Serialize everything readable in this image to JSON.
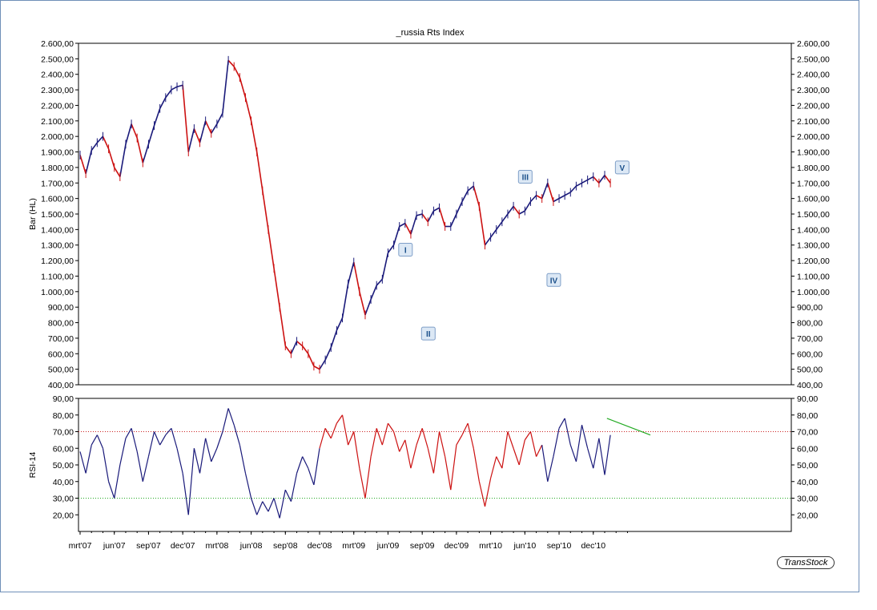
{
  "title": "_russia Rts Index",
  "brand": "TransStock",
  "colors": {
    "up": "#1a1a7a",
    "down": "#cc1111",
    "rsi_line_70": "#cc2222",
    "rsi_line_30": "#22aa22",
    "trendline": "#22aa22",
    "wave_label_bg": "#dce8f5",
    "wave_label_border": "#7f9fc8",
    "wave_label_text": "#1a4f8a"
  },
  "chart_data": [
    {
      "type": "line",
      "name": "price",
      "ylabel": "Bar (HL)",
      "ylim": [
        400,
        2600
      ],
      "yticks": [
        "400,00",
        "500,00",
        "600,00",
        "700,00",
        "800,00",
        "900,00",
        "1.000,00",
        "1.100,00",
        "1.200,00",
        "1.300,00",
        "1.400,00",
        "1.500,00",
        "1.600,00",
        "1.700,00",
        "1.800,00",
        "1.900,00",
        "2.000,00",
        "2.100,00",
        "2.200,00",
        "2.300,00",
        "2.400,00",
        "2.500,00",
        "2.600,00"
      ],
      "xticks": [
        "mrt'07",
        "jun'07",
        "sep'07",
        "dec'07",
        "mrt'08",
        "jun'08",
        "sep'08",
        "dec'08",
        "mrt'09",
        "jun'09",
        "sep'09",
        "dec'09",
        "mrt'10",
        "jun'10",
        "sep'10",
        "dec'10"
      ],
      "x_months": [
        0,
        0.5,
        1,
        1.5,
        2,
        2.5,
        3,
        3.5,
        4,
        4.5,
        5,
        5.5,
        6,
        6.5,
        7,
        7.5,
        8,
        8.5,
        9,
        9.5,
        10,
        10.5,
        11,
        11.5,
        12,
        12.5,
        13,
        13.5,
        14,
        14.5,
        15,
        15.5,
        16,
        16.5,
        17,
        17.5,
        18,
        18.5,
        19,
        19.5,
        20,
        20.5,
        21,
        21.5,
        22,
        22.5,
        23,
        23.5,
        24,
        24.5,
        25,
        25.5,
        26,
        26.5,
        27,
        27.5,
        28,
        28.5,
        29,
        29.5,
        30,
        30.5,
        31,
        31.5,
        32,
        32.5,
        33,
        33.5,
        34,
        34.5,
        35,
        35.5,
        36,
        36.5,
        37,
        37.5,
        38,
        38.5,
        39,
        39.5,
        40,
        40.5,
        41,
        41.5,
        42,
        42.5,
        43,
        43.5,
        44,
        44.5,
        45,
        45.5,
        46,
        46.5
      ],
      "values": [
        1880,
        1760,
        1910,
        1960,
        2000,
        1920,
        1800,
        1740,
        1950,
        2080,
        1990,
        1830,
        1950,
        2070,
        2180,
        2250,
        2300,
        2320,
        2330,
        1900,
        2050,
        1960,
        2100,
        2020,
        2080,
        2150,
        2490,
        2450,
        2380,
        2250,
        2100,
        1900,
        1650,
        1400,
        1150,
        900,
        650,
        600,
        680,
        650,
        600,
        520,
        500,
        560,
        640,
        750,
        830,
        1050,
        1190,
        1000,
        850,
        950,
        1040,
        1080,
        1250,
        1300,
        1420,
        1440,
        1370,
        1490,
        1500,
        1450,
        1520,
        1540,
        1420,
        1420,
        1500,
        1580,
        1650,
        1680,
        1550,
        1300,
        1350,
        1400,
        1450,
        1500,
        1550,
        1500,
        1520,
        1580,
        1620,
        1600,
        1700,
        1580,
        1600,
        1620,
        1640,
        1680,
        1700,
        1720,
        1740,
        1700,
        1750,
        1700
      ],
      "wave_labels": [
        {
          "label": "I",
          "month": 28.5,
          "price": 1270
        },
        {
          "label": "II",
          "month": 30.5,
          "price": 730
        },
        {
          "label": "III",
          "month": 39.0,
          "price": 1740
        },
        {
          "label": "IV",
          "month": 41.5,
          "price": 1075
        },
        {
          "label": "V",
          "month": 47.5,
          "price": 1800
        }
      ]
    },
    {
      "type": "line",
      "name": "rsi",
      "ylabel": "RSI-14",
      "ylim": [
        10,
        90
      ],
      "yticks": [
        "20,00",
        "30,00",
        "40,00",
        "50,00",
        "60,00",
        "70,00",
        "80,00",
        "90,00"
      ],
      "levels": [
        70,
        30
      ],
      "values": [
        58,
        45,
        62,
        68,
        60,
        40,
        30,
        50,
        66,
        72,
        58,
        40,
        55,
        70,
        62,
        68,
        72,
        60,
        45,
        20,
        60,
        45,
        66,
        52,
        60,
        70,
        84,
        74,
        62,
        45,
        30,
        20,
        28,
        22,
        30,
        18,
        35,
        28,
        45,
        55,
        48,
        38,
        60,
        72,
        66,
        75,
        80,
        62,
        70,
        48,
        30,
        55,
        72,
        62,
        75,
        70,
        58,
        65,
        48,
        62,
        72,
        60,
        45,
        70,
        55,
        35,
        62,
        68,
        75,
        60,
        40,
        25,
        42,
        55,
        48,
        70,
        60,
        50,
        65,
        70,
        55,
        62,
        40,
        55,
        72,
        78,
        62,
        52,
        74,
        60,
        48,
        66,
        44,
        68
      ],
      "trendline": {
        "from": [
          46.2,
          78
        ],
        "to": [
          48.6,
          69
        ]
      }
    }
  ]
}
